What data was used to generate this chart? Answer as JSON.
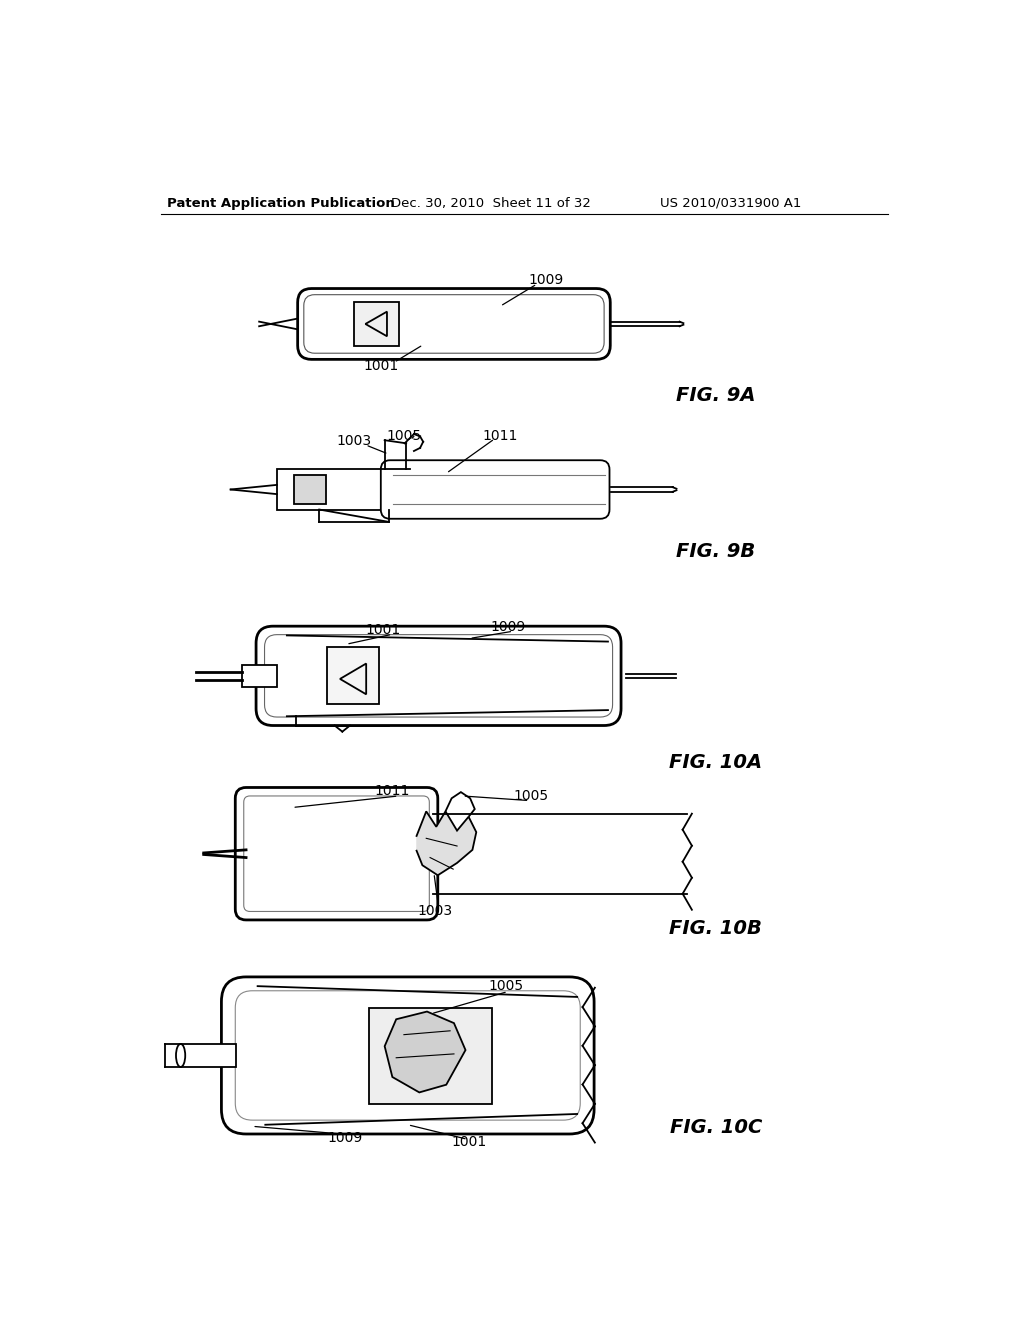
{
  "background_color": "#ffffff",
  "text_color": "#000000",
  "line_color": "#000000",
  "header_left": "Patent Application Publication",
  "header_center": "Dec. 30, 2010  Sheet 11 of 32",
  "header_right": "US 2010/0331900 A1",
  "fig9a_label": "FIG. 9A",
  "fig9b_label": "FIG. 9B",
  "fig10a_label": "FIG. 10A",
  "fig10b_label": "FIG. 10B",
  "fig10c_label": "FIG. 10C"
}
